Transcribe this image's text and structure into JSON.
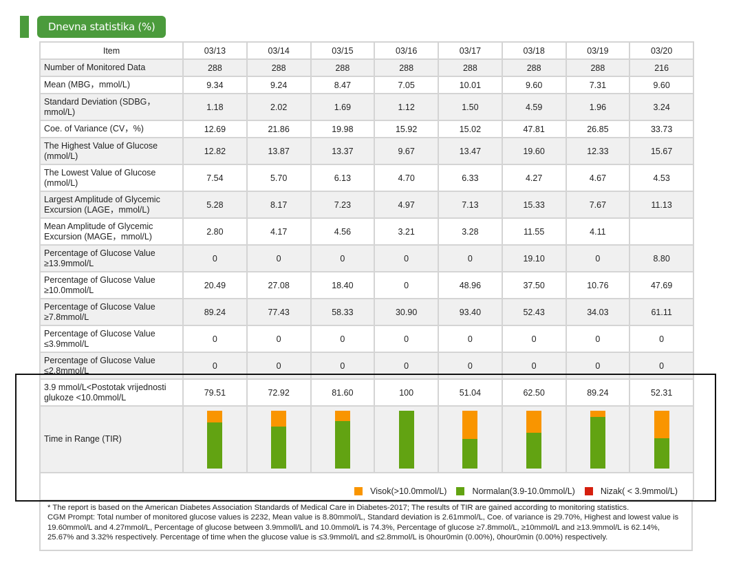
{
  "section_title": "Dnevna statistika (%)",
  "table": {
    "header": {
      "item_label": "Item",
      "dates": [
        "03/13",
        "03/14",
        "03/15",
        "03/16",
        "03/17",
        "03/18",
        "03/19",
        "03/20"
      ]
    },
    "rows": [
      {
        "label": "Number of Monitored Data",
        "values": [
          "288",
          "288",
          "288",
          "288",
          "288",
          "288",
          "288",
          "216"
        ]
      },
      {
        "label": "Mean (MBG，mmol/L)",
        "values": [
          "9.34",
          "9.24",
          "8.47",
          "7.05",
          "10.01",
          "9.60",
          "7.31",
          "9.60"
        ]
      },
      {
        "label": "Standard Deviation (SDBG，mmol/L)",
        "values": [
          "1.18",
          "2.02",
          "1.69",
          "1.12",
          "1.50",
          "4.59",
          "1.96",
          "3.24"
        ]
      },
      {
        "label": "Coe. of Variance (CV，%)",
        "values": [
          "12.69",
          "21.86",
          "19.98",
          "15.92",
          "15.02",
          "47.81",
          "26.85",
          "33.73"
        ]
      },
      {
        "label": "The Highest Value of Glucose (mmol/L)",
        "values": [
          "12.82",
          "13.87",
          "13.37",
          "9.67",
          "13.47",
          "19.60",
          "12.33",
          "15.67"
        ]
      },
      {
        "label": "The Lowest Value of Glucose (mmol/L)",
        "values": [
          "7.54",
          "5.70",
          "6.13",
          "4.70",
          "6.33",
          "4.27",
          "4.67",
          "4.53"
        ]
      },
      {
        "label": "Largest Amplitude of Glycemic Excursion (LAGE，mmol/L)",
        "values": [
          "5.28",
          "8.17",
          "7.23",
          "4.97",
          "7.13",
          "15.33",
          "7.67",
          "11.13"
        ]
      },
      {
        "label": "Mean Amplitude of Glycemic Excursion (MAGE，mmol/L)",
        "values": [
          "2.80",
          "4.17",
          "4.56",
          "3.21",
          "3.28",
          "11.55",
          "4.11",
          ""
        ]
      },
      {
        "label": "Percentage of Glucose Value ≥13.9mmol/L",
        "values": [
          "0",
          "0",
          "0",
          "0",
          "0",
          "19.10",
          "0",
          "8.80"
        ]
      },
      {
        "label": "Percentage of Glucose Value ≥10.0mmol/L",
        "values": [
          "20.49",
          "27.08",
          "18.40",
          "0",
          "48.96",
          "37.50",
          "10.76",
          "47.69"
        ]
      },
      {
        "label": "Percentage of Glucose Value ≥7.8mmol/L",
        "values": [
          "89.24",
          "77.43",
          "58.33",
          "30.90",
          "93.40",
          "52.43",
          "34.03",
          "61.11"
        ]
      },
      {
        "label": "Percentage of Glucose Value ≤3.9mmol/L",
        "values": [
          "0",
          "0",
          "0",
          "0",
          "0",
          "0",
          "0",
          "0"
        ]
      },
      {
        "label": "Percentage of Glucose Value ≤2.8mmol/L",
        "values": [
          "0",
          "0",
          "0",
          "0",
          "0",
          "0",
          "0",
          "0"
        ]
      },
      {
        "label": "3.9 mmol/L<Postotak vrijednosti glukoze <10.0mmol/L",
        "values": [
          "79.51",
          "72.92",
          "81.60",
          "100",
          "51.04",
          "62.50",
          "89.24",
          "52.31"
        ]
      }
    ],
    "tir_label": "Time in Range (TIR)"
  },
  "chart_data": {
    "type": "bar",
    "stacked": true,
    "title": "Time in Range (TIR)",
    "categories": [
      "03/13",
      "03/14",
      "03/15",
      "03/16",
      "03/17",
      "03/18",
      "03/19",
      "03/20"
    ],
    "series": [
      {
        "name": "Nizak( < 3.9mmol/L)",
        "color": "#d51f0e",
        "values": [
          0,
          0,
          0,
          0,
          0,
          0,
          0,
          0
        ]
      },
      {
        "name": "Normalan(3.9-10.0mmol/L)",
        "color": "#62a312",
        "values": [
          79.51,
          72.92,
          81.6,
          100,
          51.04,
          62.5,
          89.24,
          52.31
        ]
      },
      {
        "name": "Visok(>10.0mmol/L)",
        "color": "#f99500",
        "values": [
          20.49,
          27.08,
          18.4,
          0,
          48.96,
          37.5,
          10.76,
          47.69
        ]
      }
    ],
    "ylim": [
      0,
      100
    ],
    "legend": [
      "Visok(>10.0mmol/L)",
      "Normalan(3.9-10.0mmol/L)",
      "Nizak( < 3.9mmol/L)"
    ],
    "legend_position": "bottom-right"
  },
  "legend": [
    {
      "label": "Visok(>10.0mmol/L)",
      "color": "#f99500"
    },
    {
      "label": "Normalan(3.9-10.0mmol/L)",
      "color": "#62a312"
    },
    {
      "label": "Nizak( < 3.9mmol/L)",
      "color": "#d51f0e"
    }
  ],
  "notes": {
    "line1": "* The report is based on the American Diabetes Association Standards of Medical Care in Diabetes-2017; The results of TIR are gained according to monitoring statistics.",
    "line2": "CGM Prompt: Total number of monitored glucose values is 2232, Mean value is 8.80mmol/L, Standard deviation is 2.61mmol/L, Coe. of variance is 29.70%, Highest and lowest value is 19.60mmol/L and 4.27mmol/L, Percentage of glucose between 3.9mmoll/L and 10.0mmol/L is 74.3%, Percentage of glucose ≥7.8mmol/L, ≥10mmol/L and ≥13.9mmol/L is 62.14%, 25.67% and 3.32% respectively. Percentage of time when the glucose value is ≤3.9mmol/L and ≤2.8mmol/L is 0hour0min (0.00%), 0hour0min (0.00%) respectively."
  }
}
